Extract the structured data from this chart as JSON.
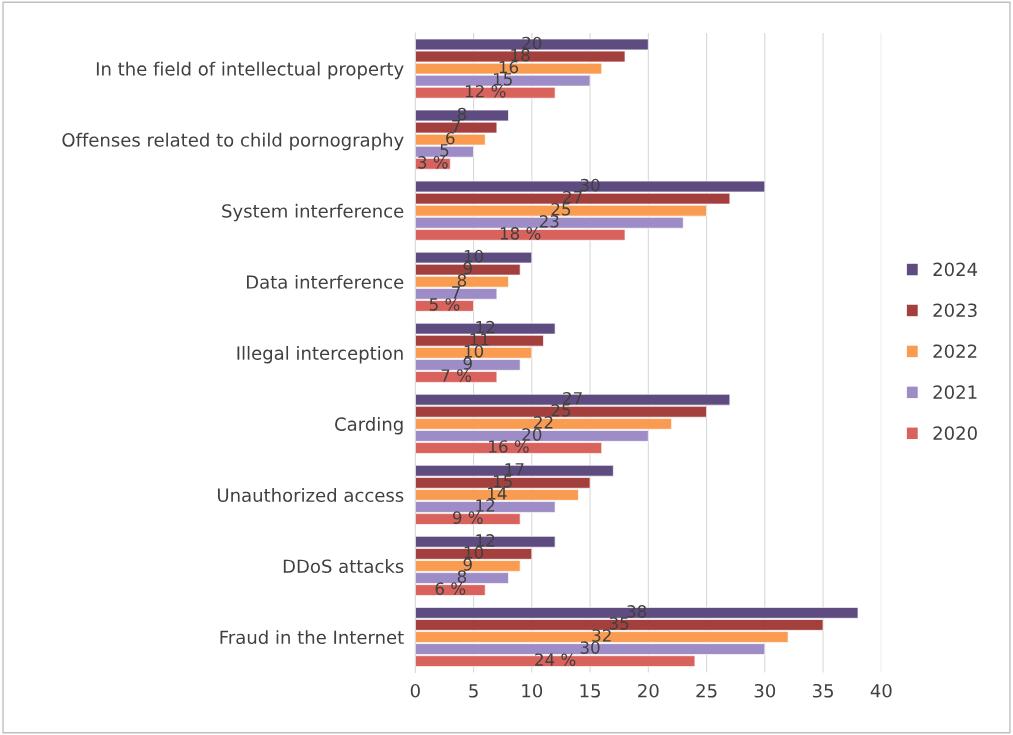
{
  "chart_data": {
    "type": "bar",
    "orientation": "horizontal",
    "categories": [
      "In the field of intellectual property",
      "Offenses related to child pornography",
      "System interference",
      "Data interference",
      "Illegal interception",
      "Carding",
      "Unauthorized access",
      "DDoS attacks",
      "Fraud in the Internet"
    ],
    "series": [
      {
        "name": "2024",
        "color": "#5e4b80",
        "values": [
          20,
          8,
          30,
          10,
          12,
          27,
          17,
          12,
          38
        ],
        "value_labels": [
          "20",
          "8",
          "30",
          "10",
          "12",
          "27",
          "17",
          "12",
          "38"
        ]
      },
      {
        "name": "2023",
        "color": "#a3403d",
        "values": [
          18,
          7,
          27,
          9,
          11,
          25,
          15,
          10,
          35
        ],
        "value_labels": [
          "18",
          "7",
          "27",
          "9",
          "11",
          "25",
          "15",
          "10",
          "35"
        ]
      },
      {
        "name": "2022",
        "color": "#f99c52",
        "values": [
          16,
          6,
          25,
          8,
          10,
          22,
          14,
          9,
          32
        ],
        "value_labels": [
          "16",
          "6",
          "25",
          "8",
          "10",
          "22",
          "14",
          "9",
          "32"
        ]
      },
      {
        "name": "2021",
        "color": "#9d8cc6",
        "values": [
          15,
          5,
          23,
          7,
          9,
          20,
          12,
          8,
          30
        ],
        "value_labels": [
          "15",
          "5",
          "23",
          "7",
          "9",
          "20",
          "12",
          "8",
          "30"
        ]
      },
      {
        "name": "2020",
        "color": "#d9625c",
        "values": [
          12,
          3,
          18,
          5,
          7,
          16,
          9,
          6,
          24
        ],
        "value_labels": [
          "12 %",
          "3 %",
          "18 %",
          "5 %",
          "7 %",
          "16 %",
          "9 %",
          "6 %",
          "24 %"
        ]
      }
    ],
    "xlim": [
      0,
      40
    ],
    "xticks": [
      0,
      5,
      10,
      15,
      20,
      25,
      30,
      35,
      40
    ],
    "grid": "x",
    "legend": "right"
  }
}
